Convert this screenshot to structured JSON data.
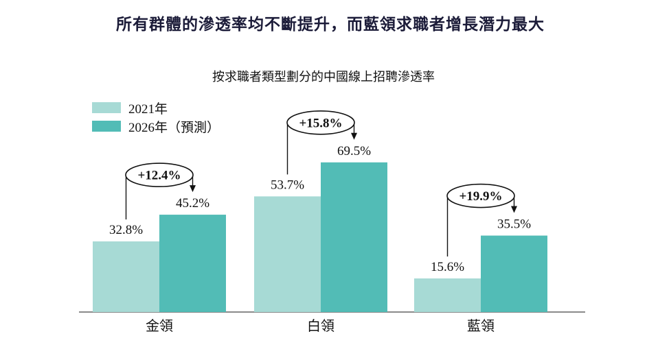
{
  "title": "所有群體的滲透率均不斷提升，而藍領求職者增長潛力最大",
  "subtitle": "按求職者類型劃分的中國線上招聘滲透率",
  "legend": {
    "items": [
      {
        "label": "2021年",
        "color": "#a7dad5"
      },
      {
        "label": "2026年（預測）",
        "color": "#52bcb6"
      }
    ]
  },
  "chart_data": {
    "type": "bar",
    "title": "按求職者類型劃分的中國線上招聘滲透率",
    "categories": [
      "金領",
      "白領",
      "藍領"
    ],
    "series": [
      {
        "name": "2021年",
        "color": "#a7dad5",
        "values": [
          32.8,
          53.7,
          15.6
        ]
      },
      {
        "name": "2026年（預測）",
        "color": "#52bcb6",
        "values": [
          45.2,
          69.5,
          35.5
        ]
      }
    ],
    "data_labels": [
      [
        "32.8%",
        "53.7%",
        "15.6%"
      ],
      [
        "45.2%",
        "69.5%",
        "35.5%"
      ]
    ],
    "growth_labels": [
      "+12.4%",
      "+15.8%",
      "+19.9%"
    ],
    "unit": "%",
    "ylim": [
      0,
      75
    ],
    "y_axis_visible": false,
    "grid": false,
    "legend_position": "top-left"
  },
  "colors": {
    "title_text": "#1b1b38",
    "axis_line": "#444444",
    "annotation_stroke": "#111111"
  }
}
